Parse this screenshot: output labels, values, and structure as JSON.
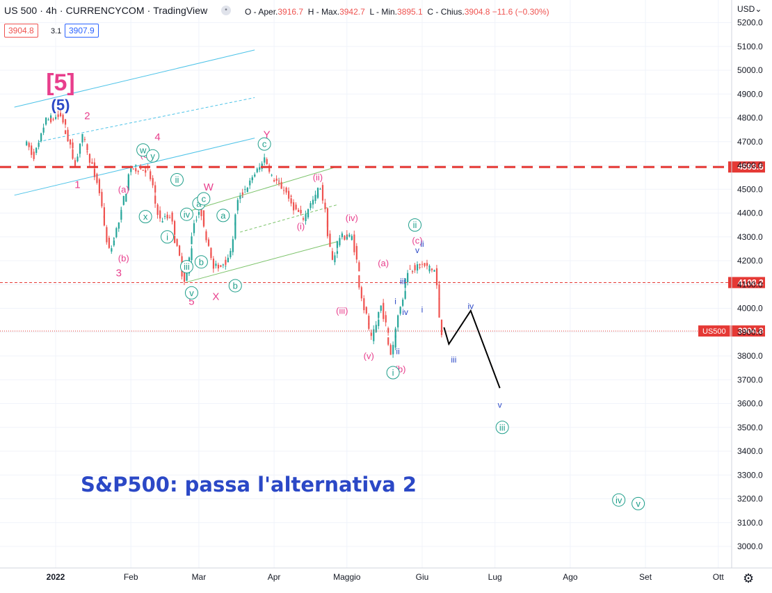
{
  "header": {
    "symbol": "US 500",
    "timeframe": "4h",
    "exchange": "CURRENCYCOM",
    "platform": "TradingView",
    "menu_glyph": "•",
    "ohlc": {
      "o_label": "O - Aper.",
      "o": "3916.7",
      "h_label": "H - Max.",
      "h": "3942.7",
      "l_label": "L - Min.",
      "l": "3895.1",
      "c_label": "C - Chius.",
      "c": "3904.8",
      "change": "−11.6 (−0.30%)"
    },
    "bid": "3904.8",
    "spread": "3.1",
    "ask": "3907.9",
    "currency": "USD",
    "currency_arrow": "⌄"
  },
  "settings_icon_glyph": "⚙",
  "colors": {
    "pink": "#e83e8c",
    "teal": "#1e9e8a",
    "blue_wave": "#2b48c6",
    "red_line": "#e53935",
    "candle_up": "#26a69a",
    "candle_down": "#ef5350",
    "channel_cyan": "#4dc3e8",
    "channel_green": "#7cc36a"
  },
  "chart_data": {
    "type": "candlestick",
    "title": "S&P500: passa l'alternativa 2",
    "symbol": "US 500 · 4h · CURRENCYCOM",
    "yaxis_ticks": [
      "5200.0",
      "5100.0",
      "5000.0",
      "4900.0",
      "4800.0",
      "4700.0",
      "4600.0",
      "4500.0",
      "4400.0",
      "4300.0",
      "4200.0",
      "4100.0",
      "4000.0",
      "3900.0",
      "3800.0",
      "3700.0",
      "3600.0",
      "3500.0",
      "3400.0",
      "3300.0",
      "3200.0",
      "3100.0",
      "3000.0"
    ],
    "ylim": [
      2920,
      5240
    ],
    "xaxis_ticks": [
      "2022",
      "Feb",
      "Mar",
      "Apr",
      "Maggio",
      "Giu",
      "Lug",
      "Ago",
      "Set",
      "Ott"
    ],
    "price_levels": [
      {
        "label": "4593.6",
        "value": 4593.6,
        "style": "dashed-thick"
      },
      {
        "label": "4108.2",
        "value": 4108.2,
        "style": "dashed-thin"
      }
    ],
    "last_price": {
      "symbol": "US500",
      "value": 3904.8,
      "label": "3904.8"
    },
    "approx_price_path": [
      {
        "date": "2021-12-20",
        "close": 4700
      },
      {
        "date": "2021-12-24",
        "close": 4640
      },
      {
        "date": "2021-12-29",
        "close": 4790
      },
      {
        "date": "2022-01-04",
        "close": 4810
      },
      {
        "date": "2022-01-10",
        "close": 4610
      },
      {
        "date": "2022-01-13",
        "close": 4720
      },
      {
        "date": "2022-01-19",
        "close": 4530
      },
      {
        "date": "2022-01-24",
        "close": 4240
      },
      {
        "date": "2022-01-27",
        "close": 4330
      },
      {
        "date": "2022-02-02",
        "close": 4590
      },
      {
        "date": "2022-02-09",
        "close": 4580
      },
      {
        "date": "2022-02-14",
        "close": 4370
      },
      {
        "date": "2022-02-18",
        "close": 4390
      },
      {
        "date": "2022-02-24",
        "close": 4110
      },
      {
        "date": "2022-02-28",
        "close": 4360
      },
      {
        "date": "2022-03-02",
        "close": 4430
      },
      {
        "date": "2022-03-08",
        "close": 4170
      },
      {
        "date": "2022-03-14",
        "close": 4200
      },
      {
        "date": "2022-03-18",
        "close": 4450
      },
      {
        "date": "2022-03-29",
        "close": 4630
      },
      {
        "date": "2022-04-01",
        "close": 4550
      },
      {
        "date": "2022-04-06",
        "close": 4500
      },
      {
        "date": "2022-04-11",
        "close": 4410
      },
      {
        "date": "2022-04-14",
        "close": 4380
      },
      {
        "date": "2022-04-21",
        "close": 4510
      },
      {
        "date": "2022-04-26",
        "close": 4200
      },
      {
        "date": "2022-04-29",
        "close": 4300
      },
      {
        "date": "2022-05-04",
        "close": 4300
      },
      {
        "date": "2022-05-09",
        "close": 4000
      },
      {
        "date": "2022-05-12",
        "close": 3870
      },
      {
        "date": "2022-05-16",
        "close": 4010
      },
      {
        "date": "2022-05-20",
        "close": 3810
      },
      {
        "date": "2022-05-27",
        "close": 4160
      },
      {
        "date": "2022-06-02",
        "close": 4180
      },
      {
        "date": "2022-06-07",
        "close": 4160
      },
      {
        "date": "2022-06-10",
        "close": 3900
      }
    ],
    "projection_path": [
      {
        "date": "2022-06-10",
        "value": 3920
      },
      {
        "date": "2022-06-12",
        "value": 3850
      },
      {
        "date": "2022-06-21",
        "value": 3990
      },
      {
        "date": "2022-07-03",
        "value": 3665
      }
    ],
    "wave_labels": [
      {
        "text": "[5]",
        "date": "2022-01-03",
        "price": 4950,
        "color": "pink"
      },
      {
        "text": "(5)",
        "date": "2022-01-03",
        "price": 4855,
        "color": "blue"
      },
      {
        "text": "2",
        "date": "2022-01-14",
        "price": 4810,
        "color": "pink"
      },
      {
        "text": "1",
        "date": "2022-01-10",
        "price": 4520,
        "color": "pink"
      },
      {
        "text": "4",
        "date": "2022-02-12",
        "price": 4720,
        "color": "pink"
      },
      {
        "text": "3",
        "date": "2022-01-27",
        "price": 4150,
        "color": "pink"
      },
      {
        "text": "5",
        "date": "2022-02-26",
        "price": 4030,
        "color": "pink"
      },
      {
        "text": "W",
        "date": "2022-03-05",
        "price": 4510,
        "color": "pink"
      },
      {
        "text": "X",
        "date": "2022-03-08",
        "price": 4050,
        "color": "pink"
      },
      {
        "text": "Y",
        "date": "2022-03-29",
        "price": 4730,
        "color": "pink"
      },
      {
        "text": "(a)",
        "date": "2022-01-29",
        "price": 4500,
        "color": "pink"
      },
      {
        "text": "(b)",
        "date": "2022-01-29",
        "price": 4210,
        "color": "pink"
      },
      {
        "text": "(c)",
        "date": "2022-02-07",
        "price": 4645,
        "color": "pink"
      },
      {
        "text": "(i)",
        "date": "2022-04-12",
        "price": 4345,
        "color": "pink"
      },
      {
        "text": "(ii)",
        "date": "2022-04-19",
        "price": 4550,
        "color": "pink"
      },
      {
        "text": "(iii)",
        "date": "2022-04-29",
        "price": 3990,
        "color": "pink"
      },
      {
        "text": "(iv)",
        "date": "2022-05-03",
        "price": 4380,
        "color": "pink"
      },
      {
        "text": "(v)",
        "date": "2022-05-10",
        "price": 3800,
        "color": "pink"
      },
      {
        "text": "(a)",
        "date": "2022-05-16",
        "price": 4190,
        "color": "pink"
      },
      {
        "text": "(b)",
        "date": "2022-05-23",
        "price": 3745,
        "color": "pink"
      },
      {
        "text": "(c)",
        "date": "2022-05-30",
        "price": 4285,
        "color": "pink"
      },
      {
        "text": "w",
        "date": "2022-02-06",
        "price": 4665,
        "color": "teal",
        "circle": true
      },
      {
        "text": "y",
        "date": "2022-02-10",
        "price": 4640,
        "color": "teal",
        "circle": true
      },
      {
        "text": "x",
        "date": "2022-02-07",
        "price": 4385,
        "color": "teal",
        "circle": true
      },
      {
        "text": "ii",
        "date": "2022-02-20",
        "price": 4540,
        "color": "teal",
        "circle": true
      },
      {
        "text": "i",
        "date": "2022-02-16",
        "price": 4300,
        "color": "teal",
        "circle": true
      },
      {
        "text": "iv",
        "date": "2022-02-24",
        "price": 4395,
        "color": "teal",
        "circle": true
      },
      {
        "text": "iii",
        "date": "2022-02-24",
        "price": 4175,
        "color": "teal",
        "circle": true
      },
      {
        "text": "v",
        "date": "2022-02-26",
        "price": 4065,
        "color": "teal",
        "circle": true
      },
      {
        "text": "a",
        "date": "2022-03-01",
        "price": 4440,
        "color": "teal",
        "circle": true
      },
      {
        "text": "c",
        "date": "2022-03-03",
        "price": 4460,
        "color": "teal",
        "circle": true
      },
      {
        "text": "b",
        "date": "2022-03-02",
        "price": 4195,
        "color": "teal",
        "circle": true
      },
      {
        "text": "a",
        "date": "2022-03-11",
        "price": 4390,
        "color": "teal",
        "circle": true
      },
      {
        "text": "b",
        "date": "2022-03-16",
        "price": 4095,
        "color": "teal",
        "circle": true
      },
      {
        "text": "c",
        "date": "2022-03-28",
        "price": 4690,
        "color": "teal",
        "circle": true
      },
      {
        "text": "i",
        "date": "2022-05-20",
        "price": 3730,
        "color": "teal",
        "circle": true
      },
      {
        "text": "ii",
        "date": "2022-05-29",
        "price": 4350,
        "color": "teal",
        "circle": true
      },
      {
        "text": "iii",
        "date": "2022-07-04",
        "price": 3500,
        "color": "teal",
        "circle": true
      },
      {
        "text": "iv",
        "date": "2022-08-21",
        "price": 3195,
        "color": "teal",
        "circle": true
      },
      {
        "text": "v",
        "date": "2022-08-29",
        "price": 3180,
        "color": "teal",
        "circle": true
      },
      {
        "text": "i",
        "date": "2022-05-21",
        "price": 4030,
        "color": "blue"
      },
      {
        "text": "ii",
        "date": "2022-05-22",
        "price": 3820,
        "color": "blue"
      },
      {
        "text": "iii",
        "date": "2022-05-24",
        "price": 4115,
        "color": "blue"
      },
      {
        "text": "iv",
        "date": "2022-05-25",
        "price": 3985,
        "color": "blue"
      },
      {
        "text": "v",
        "date": "2022-05-30",
        "price": 4245,
        "color": "blue"
      },
      {
        "text": "ii",
        "date": "2022-06-01",
        "price": 4270,
        "color": "blue"
      },
      {
        "text": "i",
        "date": "2022-06-01",
        "price": 3995,
        "color": "blue"
      },
      {
        "text": "iii",
        "date": "2022-06-14",
        "price": 3785,
        "color": "blue"
      },
      {
        "text": "iv",
        "date": "2022-06-21",
        "price": 4010,
        "color": "blue"
      },
      {
        "text": "v",
        "date": "2022-07-03",
        "price": 3595,
        "color": "blue"
      }
    ]
  }
}
